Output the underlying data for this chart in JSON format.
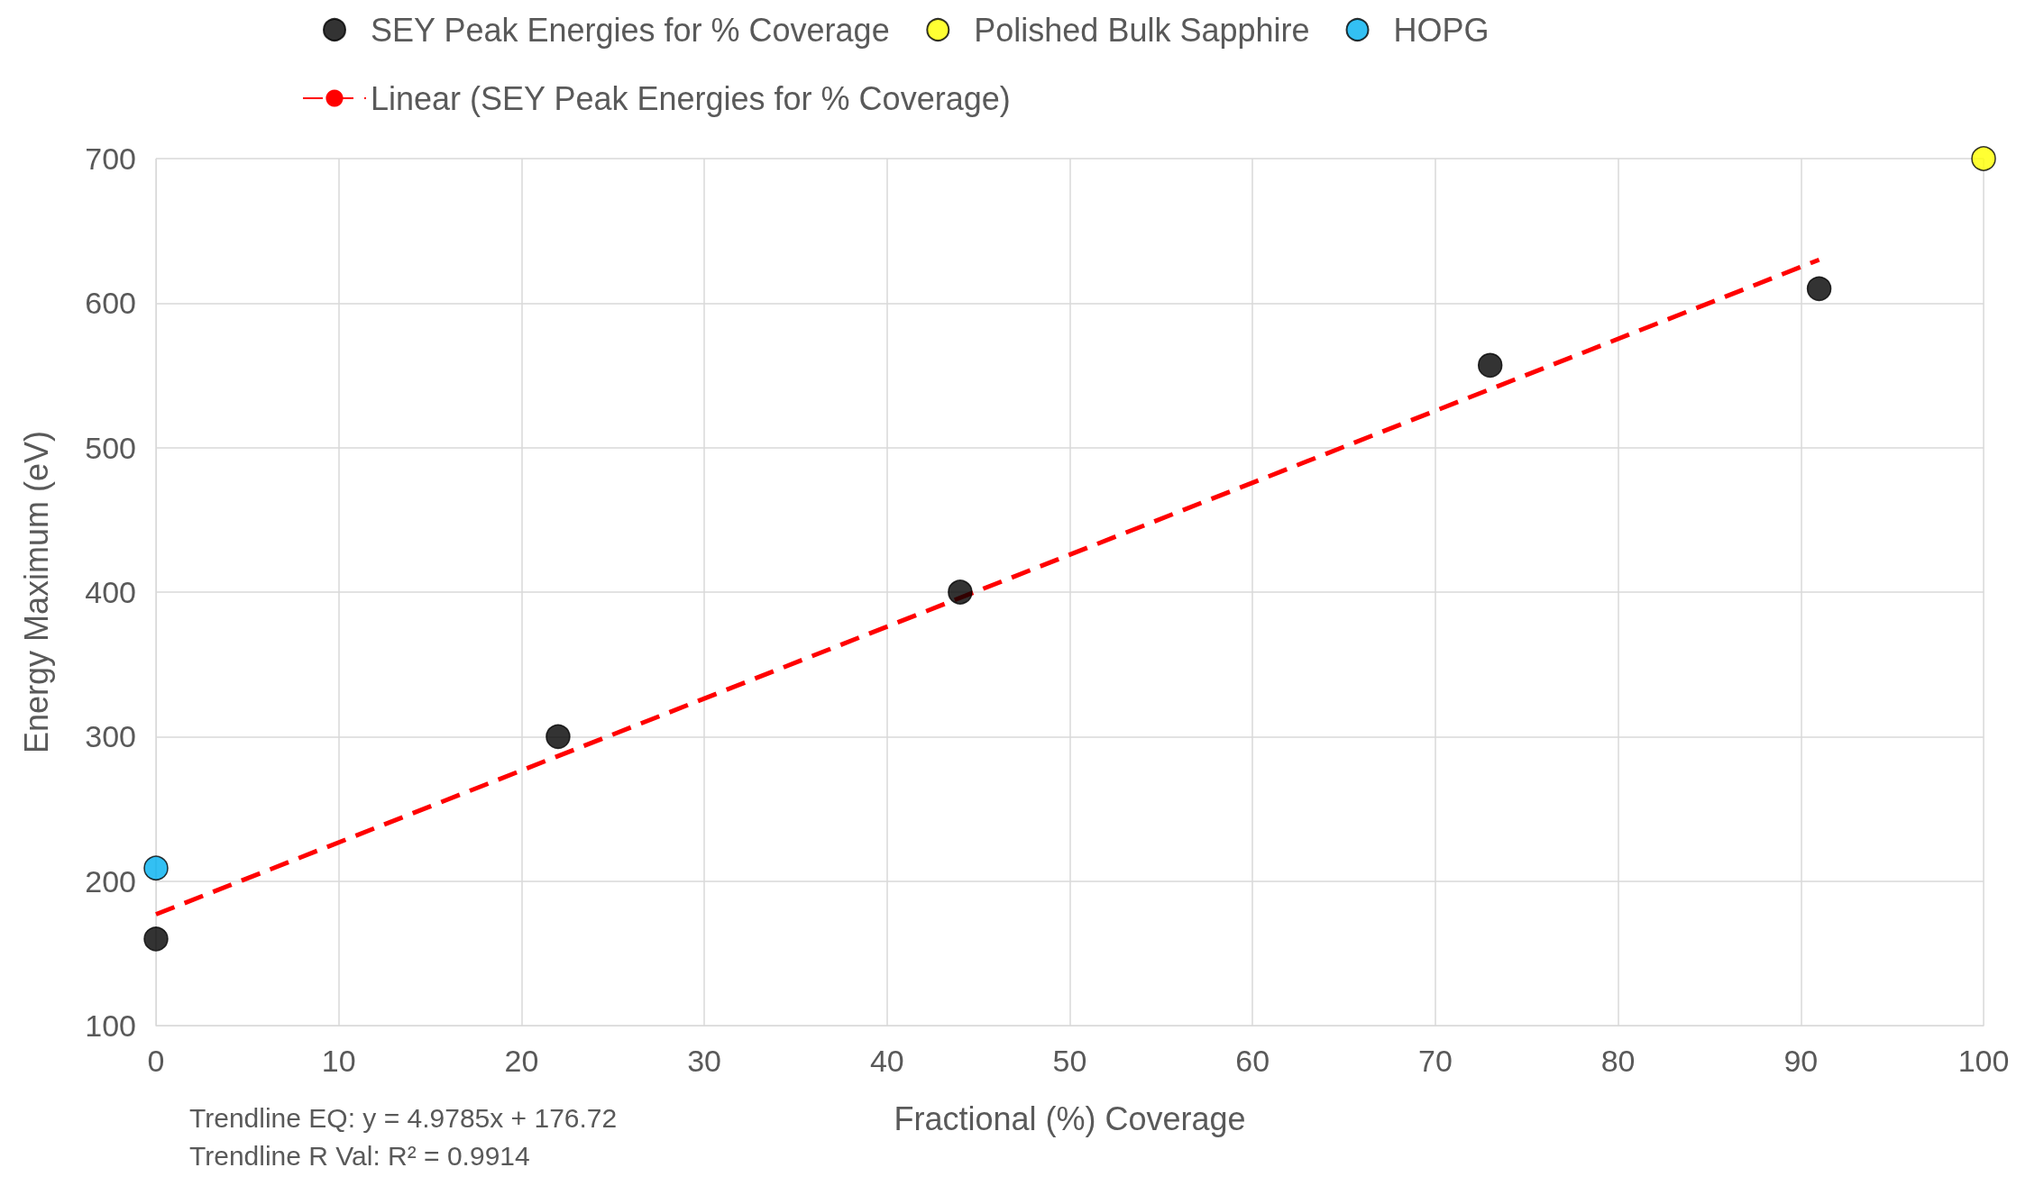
{
  "chart_data": {
    "type": "scatter",
    "xlabel": "Fractional (%) Coverage",
    "ylabel": "Energy Maximum (eV)",
    "xlim": [
      0,
      100
    ],
    "xticks": [
      0,
      10,
      20,
      30,
      40,
      50,
      60,
      70,
      80,
      90,
      100
    ],
    "ylim": [
      100,
      700
    ],
    "yticks": [
      100,
      200,
      300,
      400,
      500,
      600,
      700
    ],
    "grid": true,
    "legend": "top",
    "marker": "circle",
    "series": [
      {
        "name": "SEY Peak Energies for % Coverage",
        "color": "#000000",
        "x": [
          0,
          22,
          44,
          73,
          91
        ],
        "values": [
          160,
          300,
          400,
          557,
          610
        ]
      },
      {
        "name": "Polished Bulk Sapphire",
        "color": "#ffff00",
        "x": [
          100
        ],
        "values": [
          700
        ]
      },
      {
        "name": "HOPG",
        "color": "#00b0f0",
        "x": [
          0
        ],
        "values": [
          209
        ]
      },
      {
        "name": "Linear (SEY Peak Energies for % Coverage)",
        "type": "line",
        "line_style": "dashed",
        "marker": "none",
        "color": "#ff0000",
        "x": [
          0,
          91
        ],
        "values": [
          177,
          630
        ]
      }
    ],
    "annotations": [
      "Trendline EQ: y = 4.9785x + 176.72",
      "Trendline R Val: R² = 0.9914"
    ]
  }
}
